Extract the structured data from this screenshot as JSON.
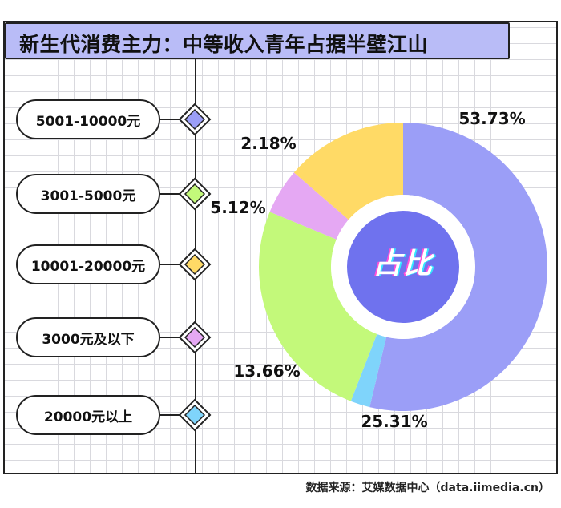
{
  "title": "新生代消费主力：中等收入青年占据半壁江山",
  "source": "数据来源：艾媒数据中心（data.iimedia.cn）",
  "center_label": "占比",
  "legend": [
    {
      "label": "5001-10000元",
      "color": "#9b9ef7"
    },
    {
      "label": "3001-5000元",
      "color": "#c3f97a"
    },
    {
      "label": "10001-20000元",
      "color": "#ffda66"
    },
    {
      "label": "3000元及以下",
      "color": "#e5a8f3"
    },
    {
      "label": "20000元以上",
      "color": "#7fd4fb"
    }
  ],
  "chart_data": {
    "type": "pie",
    "title": "新生代消费主力：中等收入青年占据半壁江山",
    "categories": [
      "5001-10000元",
      "3001-5000元",
      "10001-20000元",
      "3000元及以下",
      "20000元以上"
    ],
    "values": [
      53.73,
      25.31,
      13.66,
      5.12,
      2.18
    ],
    "value_labels": [
      "53.73%",
      "25.31%",
      "13.66%",
      "5.12%",
      "2.18%"
    ],
    "colors": [
      "#9b9ef7",
      "#c3f97a",
      "#ffda66",
      "#e5a8f3",
      "#7fd4fb"
    ],
    "center_color": "#6f72ee"
  }
}
